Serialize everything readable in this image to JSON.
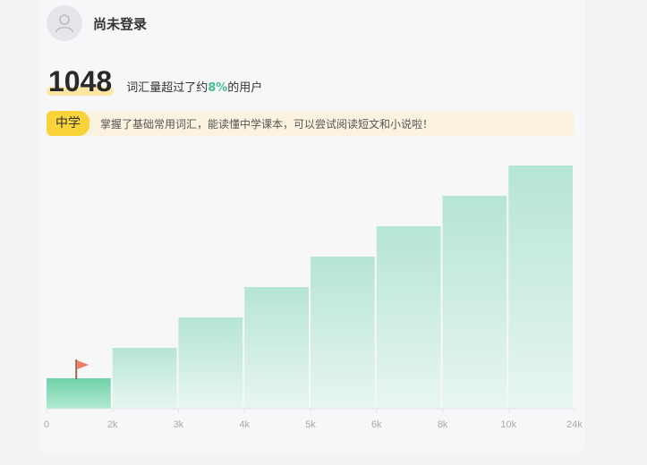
{
  "user": {
    "name": "尚未登录",
    "avatar_icon": "user-icon"
  },
  "stats": {
    "count": "1048",
    "text_before": "词汇量超过了约",
    "percent": "8%",
    "text_after": "的用户"
  },
  "level": {
    "badge": "中学",
    "description": "掌握了基础常用词汇，能读懂中学课本，可以尝试阅读短文和小说啦！"
  },
  "colors": {
    "accent": "#43c28c",
    "badge": "#f8d33a",
    "flag": "#f07e66"
  },
  "chart_data": {
    "type": "bar",
    "x_ticks": [
      "0",
      "2k",
      "3k",
      "4k",
      "5k",
      "6k",
      "8k",
      "10k",
      "24k"
    ],
    "values": [
      1,
      2,
      3,
      4,
      5,
      6,
      7,
      8
    ],
    "ylim": [
      0,
      8
    ],
    "current_bin": 0,
    "marker": "flag-icon",
    "grid": false
  }
}
